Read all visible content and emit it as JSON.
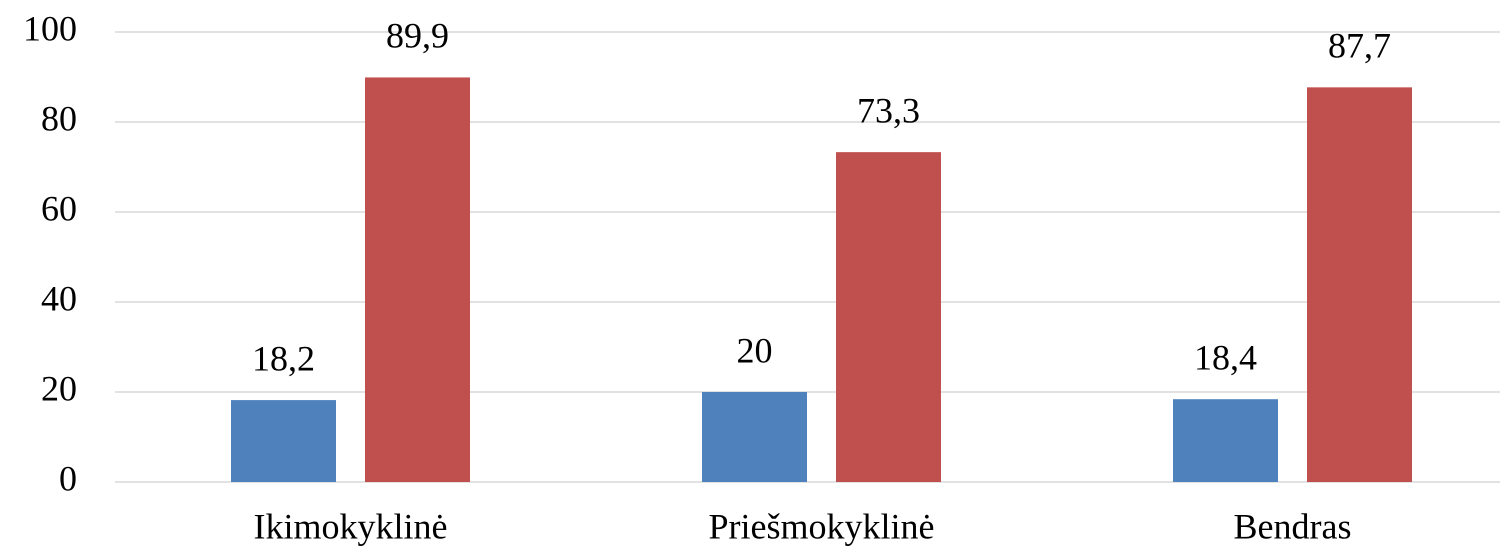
{
  "chart_data": {
    "type": "bar",
    "categories": [
      "Ikimokyklinė",
      "Priešmokyklinė",
      "Bendras"
    ],
    "series": [
      {
        "color": "#4f81bd",
        "values": [
          18.2,
          20,
          18.4
        ],
        "value_labels": [
          "18,2",
          "20",
          "18,4"
        ]
      },
      {
        "color": "#c0504d",
        "values": [
          89.9,
          73.3,
          87.7
        ],
        "value_labels": [
          "89,9",
          "73,3",
          "87,7"
        ]
      }
    ],
    "ylim": [
      0,
      100
    ],
    "yticks": [
      0,
      20,
      40,
      60,
      80,
      100
    ],
    "grid": true
  }
}
